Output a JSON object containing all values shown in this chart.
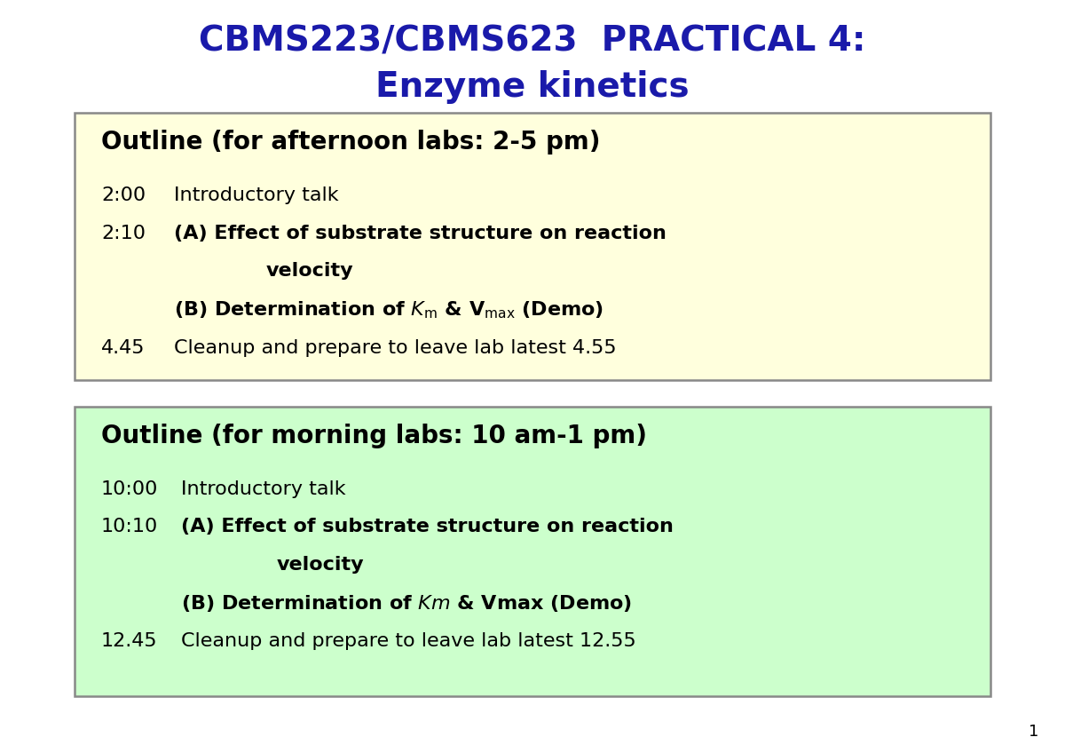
{
  "title_line1": "CBMS223/CBMS623  PRACTICAL 4:",
  "title_line2": "Enzyme kinetics",
  "title_color": "#1a1aaa",
  "title_fontsize": 28,
  "background_color": "#ffffff",
  "box1_bg": "#ffffdd",
  "box2_bg": "#ccffcc",
  "box1_border": "#888888",
  "box2_border": "#888888",
  "box1_header": "Outline (for afternoon labs: 2-5 pm)",
  "box2_header": "Outline (for morning labs: 10 am-1 pm)",
  "header_fontsize": 20,
  "body_fontsize": 16,
  "slide_number": "1"
}
